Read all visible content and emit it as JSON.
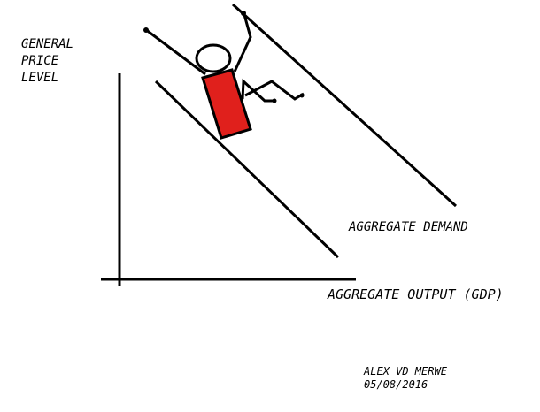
{
  "diagram": {
    "y_axis_label_lines": [
      "GENERAL",
      "PRICE",
      "LEVEL"
    ],
    "demand_curve_label": "AGGREGATE DEMAND",
    "x_axis_label": "AGGREGATE OUTPUT (GDP)",
    "credit": {
      "author": "ALEX VD MERWE",
      "date": "05/08/2016"
    }
  },
  "colors": {
    "ink": "#000000",
    "figure_body": "#e0201c",
    "background": "#ffffff"
  }
}
